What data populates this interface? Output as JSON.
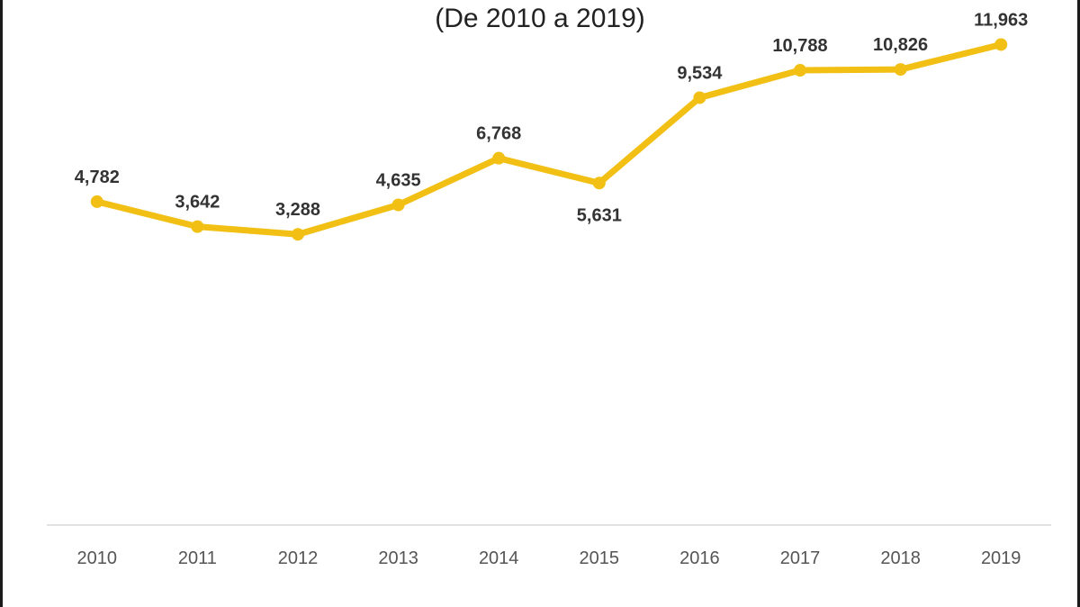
{
  "chart_data": {
    "type": "line",
    "title": "(De 2010 a 2019)",
    "categories": [
      "2010",
      "2011",
      "2012",
      "2013",
      "2014",
      "2015",
      "2016",
      "2017",
      "2018",
      "2019"
    ],
    "series": [
      {
        "name": "",
        "values": [
          4782,
          3642,
          3288,
          4635,
          6768,
          5631,
          9534,
          10788,
          10826,
          11963
        ],
        "labels": [
          "4,782",
          "3,642",
          "3,288",
          "4,635",
          "6,768",
          "5,631",
          "9,534",
          "10,788",
          "10,826",
          "11,963"
        ],
        "label_positions": [
          "above",
          "above",
          "above",
          "above",
          "above",
          "below",
          "above",
          "above",
          "above",
          "above"
        ],
        "color": "#F2C014"
      }
    ],
    "xlabel": "",
    "ylabel": "",
    "ylim": [
      -10000,
      14000
    ],
    "grid": false,
    "legend": "none",
    "axis_color": "#D9D9D9"
  }
}
